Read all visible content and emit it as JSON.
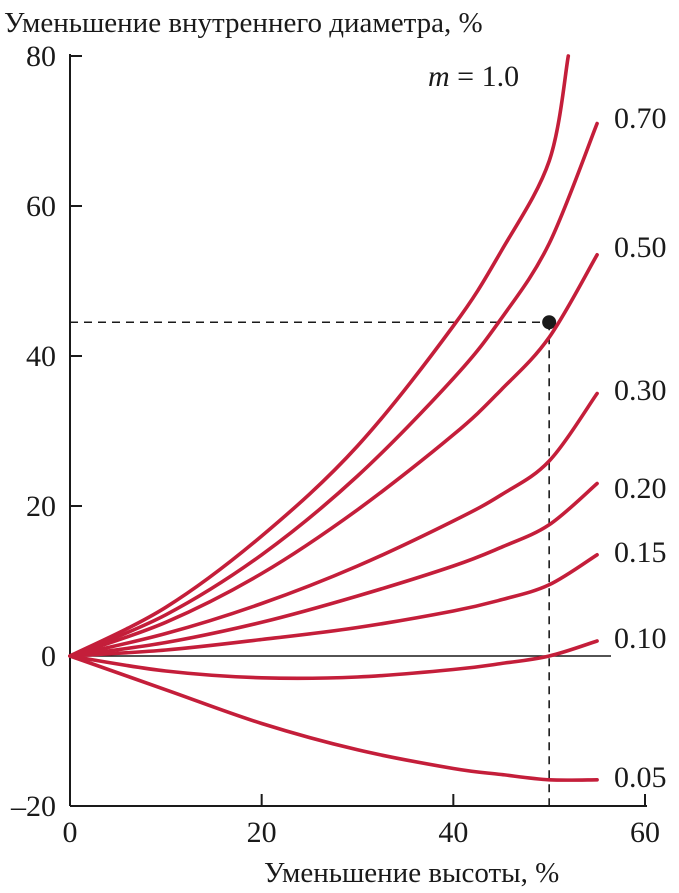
{
  "chart_data": {
    "type": "line",
    "title": "",
    "xlabel": "Уменьшение высоты, %",
    "ylabel": "Уменьшение внутреннего диаметра, %",
    "xlim": [
      0,
      60
    ],
    "ylim": [
      -20,
      80
    ],
    "x_ticks": [
      0,
      20,
      40,
      60
    ],
    "y_ticks": [
      -20,
      0,
      20,
      40,
      60,
      80
    ],
    "x_tick_labels": [
      "0",
      "20",
      "40",
      "60"
    ],
    "y_tick_labels": [
      "–20",
      "0",
      "20",
      "40",
      "60",
      "80"
    ],
    "grid": false,
    "series_color": "#c41e3a",
    "param_prefix": "m",
    "param_equals": " = ",
    "series": [
      {
        "name": "1.0",
        "x": [
          0,
          10,
          20,
          30,
          40,
          45,
          50,
          52
        ],
        "y": [
          0,
          6.5,
          16,
          28,
          44,
          54,
          66,
          80
        ]
      },
      {
        "name": "0.70",
        "x": [
          0,
          10,
          20,
          30,
          40,
          45,
          50,
          55
        ],
        "y": [
          0,
          5.5,
          13.5,
          24,
          37,
          45,
          55,
          71
        ]
      },
      {
        "name": "0.50",
        "x": [
          0,
          10,
          20,
          30,
          40,
          45,
          50,
          55
        ],
        "y": [
          0,
          4.5,
          11,
          19.5,
          29.5,
          35.5,
          42.5,
          53.5
        ]
      },
      {
        "name": "0.30",
        "x": [
          0,
          10,
          20,
          30,
          40,
          45,
          50,
          55
        ],
        "y": [
          0,
          3,
          7,
          12,
          18,
          21.5,
          26,
          35
        ]
      },
      {
        "name": "0.20",
        "x": [
          0,
          10,
          20,
          30,
          40,
          45,
          50,
          55
        ],
        "y": [
          0,
          1.8,
          4.5,
          8,
          12,
          14.5,
          17.5,
          23
        ]
      },
      {
        "name": "0.15",
        "x": [
          0,
          10,
          20,
          30,
          40,
          45,
          50,
          55
        ],
        "y": [
          0,
          0.8,
          2.2,
          3.8,
          6,
          7.5,
          9.5,
          13.5
        ]
      },
      {
        "name": "0.10",
        "x": [
          0,
          10,
          20,
          30,
          40,
          45,
          50,
          55
        ],
        "y": [
          0,
          -2,
          -2.9,
          -2.8,
          -1.8,
          -1,
          0,
          2
        ]
      },
      {
        "name": "0.05",
        "x": [
          0,
          10,
          20,
          30,
          40,
          45,
          50,
          55
        ],
        "y": [
          0,
          -4.5,
          -9,
          -12.5,
          -15,
          -15.8,
          -16.5,
          -16.5
        ]
      }
    ],
    "marker": {
      "x": 50,
      "y": 44.5
    }
  }
}
